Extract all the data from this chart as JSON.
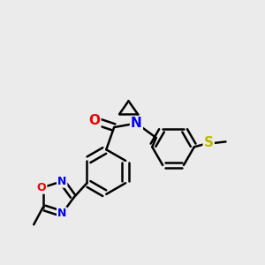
{
  "background_color": "#ebebeb",
  "bond_color": "#000000",
  "bond_width": 1.8,
  "atom_colors": {
    "N": "#0000ee",
    "O": "#ee0000",
    "S": "#bbbb00",
    "C": "#000000"
  },
  "font_size_atom": 11
}
